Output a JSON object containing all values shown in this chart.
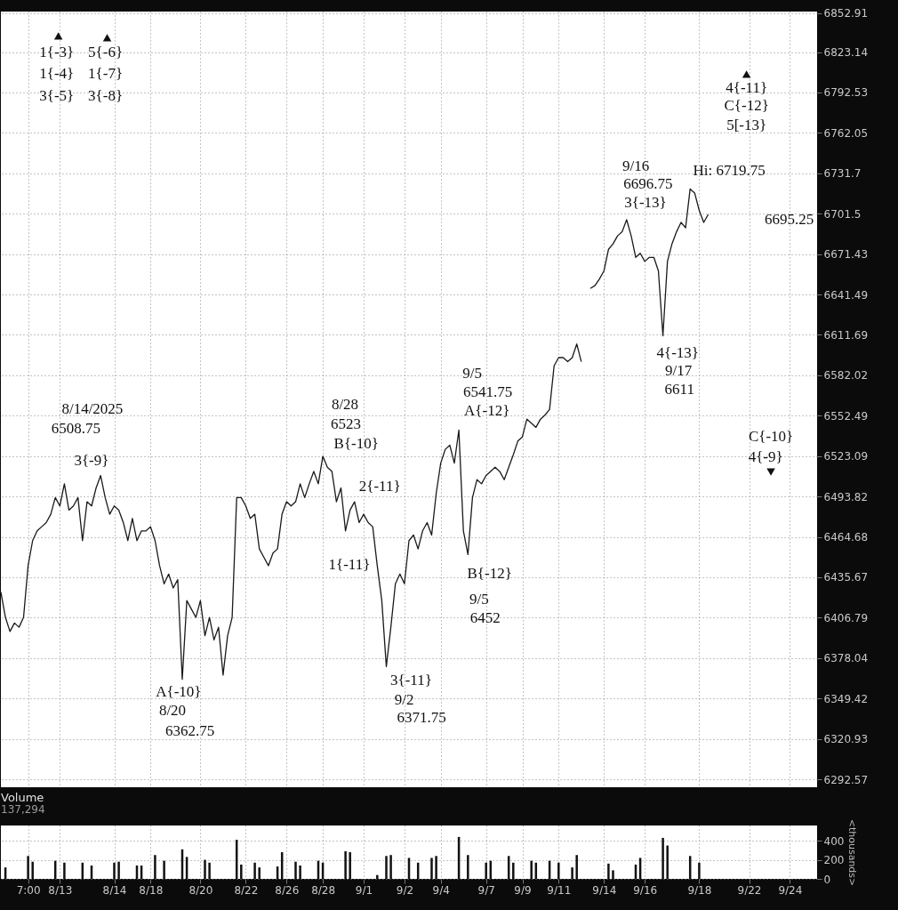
{
  "chart_data": [
    {
      "type": "line",
      "log": true,
      "grid": true,
      "tick_labels": "y",
      "categories": [
        null,
        null,
        null,
        null,
        null,
        null,
        null,
        null,
        null,
        null,
        null,
        null,
        null,
        null,
        null,
        null,
        null,
        null,
        null,
        null,
        null,
        null,
        null,
        null,
        null,
        null,
        null,
        null,
        null,
        null,
        null,
        null,
        null,
        null,
        null,
        null,
        null,
        null,
        null,
        null,
        null,
        null,
        null,
        null,
        null,
        null,
        null,
        null,
        null,
        null,
        null,
        null,
        null,
        null,
        null,
        null,
        null,
        null,
        null,
        null,
        null,
        null,
        null,
        null,
        null,
        null,
        null,
        null,
        null,
        null,
        null,
        null,
        null,
        null,
        null,
        null,
        null,
        null,
        null,
        null,
        null,
        null,
        null,
        null,
        null,
        null,
        null,
        null,
        null,
        null,
        null,
        null,
        null,
        null,
        null,
        null,
        null,
        null,
        null,
        null,
        null,
        null,
        null,
        null,
        null,
        null,
        null,
        null,
        null,
        null,
        null,
        null,
        null,
        null,
        null,
        null,
        null,
        null,
        null,
        null,
        null,
        null,
        null,
        null,
        null,
        null,
        null,
        null,
        null,
        null,
        null,
        null,
        null,
        null,
        null,
        null,
        null,
        null,
        null,
        null,
        null,
        null,
        null,
        null,
        null,
        null,
        null,
        null,
        null,
        null,
        null,
        null,
        null,
        null,
        null,
        null,
        null,
        null,
        null,
        null,
        null,
        null,
        null,
        null,
        null,
        null,
        null,
        null,
        null,
        null,
        null,
        null,
        null,
        null,
        null,
        null,
        null,
        null,
        null,
        null,
        null
      ],
      "series": [
        {
          "color": "#1a1a1a",
          "values": [
            6425,
            6407,
            6397,
            6403,
            6400,
            6407,
            6444,
            6462,
            6469,
            6472,
            6475,
            6481,
            6493,
            6487,
            6503,
            6484,
            6487,
            6493,
            6462,
            6490,
            6487,
            6500,
            6509,
            6493,
            6481,
            6487,
            6484,
            6475,
            6462,
            6478,
            6462,
            6469,
            6469,
            6472,
            6462,
            6444,
            6431,
            6438,
            6428,
            6434,
            6363,
            6419,
            6413,
            6407,
            6419,
            6394,
            6407,
            6391,
            6400,
            6366,
            6394,
            6407,
            6493,
            6493,
            6487,
            6478,
            6481,
            6456,
            6450,
            6444,
            6453,
            6456,
            6481,
            6490,
            6487,
            6490,
            6503,
            6493,
            6503,
            6512,
            6503,
            6523,
            6515,
            6512,
            6490,
            6500,
            6469,
            6484,
            6490,
            6475,
            6481,
            6475,
            6472,
            6444,
            6419,
            6372,
            6400,
            6431,
            6438,
            6431,
            6462,
            6466,
            6456,
            6469,
            6475,
            6466,
            6496,
            6518,
            6528,
            6531,
            6518,
            6542,
            6469,
            6452,
            6493,
            6506,
            6503,
            6509,
            6512,
            6515,
            6512,
            6506,
            6515,
            6524,
            6534,
            6537,
            6550,
            6547,
            6544,
            6550,
            6553,
            6557,
            6589,
            6595,
            6595,
            6592,
            6595,
            6605,
            6592,
            null,
            null,
            null,
            null,
            null,
            null,
            null,
            null,
            null,
            null,
            null,
            null,
            null,
            null,
            null,
            null,
            null,
            null,
            null,
            null,
            null,
            null,
            null,
            null,
            null,
            null,
            null,
            null,
            null,
            null,
            null,
            null,
            null,
            null,
            null,
            null,
            null,
            null,
            null,
            null,
            null,
            null,
            null,
            null,
            null,
            null,
            null,
            null,
            null,
            null,
            null,
            null
          ]
        },
        {
          "color": "#1a1a1a",
          "values": [
            null,
            null,
            null,
            null,
            null,
            null,
            null,
            null,
            null,
            null,
            null,
            null,
            null,
            null,
            null,
            null,
            null,
            null,
            null,
            null,
            null,
            null,
            null,
            null,
            null,
            null,
            null,
            null,
            null,
            null,
            null,
            null,
            null,
            null,
            null,
            null,
            null,
            null,
            null,
            null,
            null,
            null,
            null,
            null,
            null,
            null,
            null,
            null,
            null,
            null,
            null,
            null,
            null,
            null,
            null,
            null,
            null,
            null,
            null,
            null,
            null,
            null,
            null,
            null,
            null,
            null,
            null,
            null,
            null,
            null,
            null,
            null,
            null,
            null,
            null,
            null,
            null,
            null,
            null,
            null,
            null,
            null,
            null,
            null,
            null,
            null,
            null,
            null,
            null,
            null,
            null,
            null,
            null,
            null,
            null,
            null,
            null,
            null,
            null,
            null,
            null,
            null,
            null,
            null,
            null,
            null,
            null,
            null,
            null,
            null,
            null,
            null,
            null,
            null,
            null,
            null,
            null,
            null,
            null,
            null,
            null,
            null,
            null,
            null,
            null,
            null,
            null,
            null,
            null,
            null,
            6646,
            6648,
            6653,
            6659,
            6675,
            6679,
            6685,
            6688,
            6697,
            6685,
            6669,
            6672,
            6666,
            6669,
            6669,
            6659,
            6611,
            6666,
            6679,
            6688,
            6695,
            6691,
            6720,
            6717,
            6704,
            6695,
            6701,
            null,
            null,
            null,
            null,
            null,
            null,
            null,
            null,
            null,
            null,
            null,
            null,
            null,
            null,
            null,
            null,
            null,
            null,
            null,
            null,
            null,
            null,
            null,
            null
          ]
        }
      ],
      "ylim": [
        6287,
        6854
      ],
      "yticks": [
        6292.57,
        6320.93,
        6349.42,
        6378.04,
        6406.79,
        6435.67,
        6464.68,
        6493.82,
        6523.09,
        6552.49,
        6582.02,
        6611.69,
        6641.49,
        6671.43,
        6701.5,
        6731.7,
        6762.05,
        6792.53,
        6823.14,
        6852.91
      ],
      "annotations": [
        "1{-3}",
        "1{-4}",
        "3{-5}",
        "5{-6}",
        "1{-7}",
        "3{-8}",
        "8/14/2025",
        "6508.75",
        "3{-9}",
        "A{-10}",
        "8/20",
        "6362.75",
        "8/28",
        "6523",
        "B{-10}",
        "2{-11}",
        "1{-11}",
        "3{-11}",
        "9/2",
        "6371.75",
        "9/5",
        "6541.75",
        "A{-12}",
        "B{-12}",
        "9/5",
        "6452",
        "9/16",
        "6696.75",
        "3{-13}",
        "Hi: 6719.75",
        "4{-13}",
        "9/17",
        "6611",
        "4{-11}",
        "C{-12}",
        "5[-13}",
        "C{-10}",
        "4{-9}",
        "6695.25"
      ]
    },
    {
      "type": "bar",
      "title": "Volume",
      "subtitle": "137,294",
      "ylabel": "<thousands>",
      "color": "#111111",
      "grid": true,
      "categories": [
        null,
        null,
        null,
        null,
        null,
        null,
        "7:00",
        null,
        null,
        null,
        null,
        null,
        null,
        "8/13",
        null,
        null,
        null,
        null,
        null,
        null,
        null,
        null,
        null,
        null,
        null,
        "8/14",
        null,
        null,
        null,
        null,
        null,
        null,
        null,
        "8/18",
        null,
        null,
        null,
        null,
        null,
        null,
        null,
        null,
        null,
        null,
        "8/20",
        null,
        null,
        null,
        null,
        null,
        null,
        null,
        null,
        null,
        "8/22",
        null,
        null,
        null,
        null,
        null,
        null,
        null,
        null,
        "8/26",
        null,
        null,
        null,
        null,
        null,
        null,
        null,
        "8/28",
        null,
        null,
        null,
        null,
        null,
        null,
        null,
        null,
        "9/1",
        null,
        null,
        null,
        null,
        null,
        null,
        null,
        null,
        "9/2",
        null,
        null,
        null,
        null,
        null,
        null,
        null,
        "9/4",
        null,
        null,
        null,
        null,
        null,
        null,
        null,
        null,
        null,
        "9/7",
        null,
        null,
        null,
        null,
        null,
        null,
        null,
        "9/9",
        null,
        null,
        null,
        null,
        null,
        null,
        null,
        "9/11",
        null,
        null,
        null,
        null,
        null,
        null,
        null,
        null,
        null,
        "9/14",
        null,
        null,
        null,
        null,
        null,
        null,
        null,
        null,
        "9/16",
        null,
        null,
        null,
        null,
        null,
        null,
        null,
        null,
        null,
        null,
        null,
        "9/18",
        null,
        null,
        null,
        null,
        null,
        null,
        null,
        null,
        null,
        null,
        "9/22",
        null,
        null,
        null,
        null,
        null,
        null,
        null,
        null,
        "9/24",
        null,
        null,
        null,
        null,
        null,
        null
      ],
      "values": [
        null,
        120,
        null,
        null,
        null,
        null,
        240,
        180,
        null,
        null,
        null,
        null,
        190,
        null,
        170,
        null,
        null,
        null,
        170,
        null,
        140,
        null,
        null,
        null,
        null,
        170,
        180,
        null,
        null,
        null,
        140,
        140,
        null,
        null,
        250,
        null,
        190,
        null,
        null,
        null,
        310,
        230,
        null,
        null,
        null,
        200,
        170,
        null,
        null,
        null,
        null,
        null,
        410,
        150,
        null,
        null,
        170,
        120,
        null,
        null,
        null,
        130,
        280,
        null,
        null,
        180,
        140,
        null,
        null,
        null,
        190,
        170,
        null,
        null,
        null,
        null,
        290,
        280,
        null,
        null,
        null,
        null,
        null,
        40,
        null,
        240,
        250,
        null,
        null,
        null,
        220,
        null,
        170,
        null,
        null,
        220,
        240,
        null,
        null,
        null,
        null,
        440,
        null,
        250,
        null,
        null,
        null,
        170,
        190,
        null,
        null,
        null,
        240,
        170,
        null,
        null,
        null,
        190,
        170,
        null,
        null,
        190,
        null,
        170,
        null,
        null,
        120,
        250,
        null,
        null,
        null,
        null,
        null,
        null,
        160,
        90,
        null,
        null,
        null,
        null,
        150,
        220,
        null,
        null,
        null,
        null,
        430,
        350,
        null,
        null,
        null,
        null,
        240,
        null,
        170,
        null,
        null,
        null,
        null,
        null,
        null,
        null,
        null,
        null,
        null,
        null,
        null,
        null,
        null,
        null,
        null,
        null,
        null,
        null,
        null,
        null,
        null,
        null,
        null,
        null,
        null
      ],
      "ylim": [
        0,
        560
      ],
      "yticks": [
        0,
        200,
        400
      ]
    }
  ]
}
